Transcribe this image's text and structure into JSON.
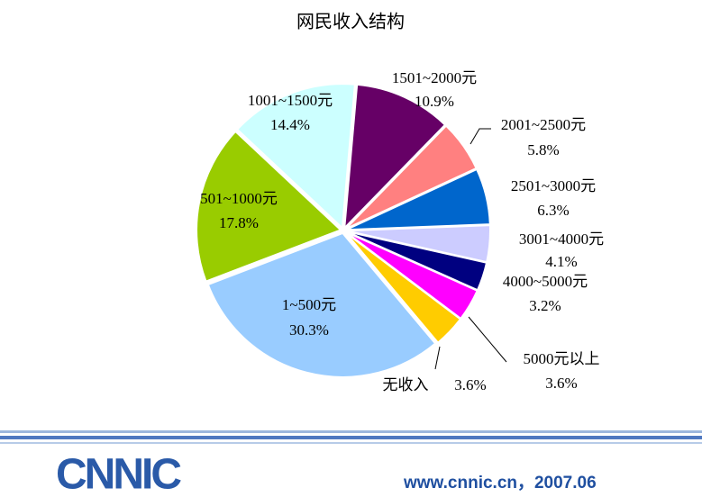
{
  "chart_data": {
    "type": "pie",
    "title": "网民收入结构",
    "categories": [
      "1501~2000元",
      "2001~2500元",
      "2501~3000元",
      "3001~4000元",
      "4000~5000元",
      "5000元以上",
      "无收入",
      "1~500元",
      "501~1000元",
      "1001~1500元"
    ],
    "values": [
      10.9,
      5.8,
      6.3,
      4.1,
      3.2,
      3.6,
      3.6,
      30.3,
      17.8,
      14.4
    ],
    "value_labels": [
      "10.9%",
      "5.8%",
      "6.3%",
      "4.1%",
      "3.2%",
      "3.6%",
      "3.6%",
      "30.3%",
      "17.8%",
      "14.4%"
    ],
    "colors": [
      "#660066",
      "#ff8080",
      "#0066cc",
      "#ccccff",
      "#000080",
      "#ff00ff",
      "#ffcc00",
      "#99ccff",
      "#99cc00",
      "#ccffff"
    ]
  },
  "footer": {
    "logo": "CNNIC",
    "site": "www.cnnic.cn，2007.06"
  }
}
